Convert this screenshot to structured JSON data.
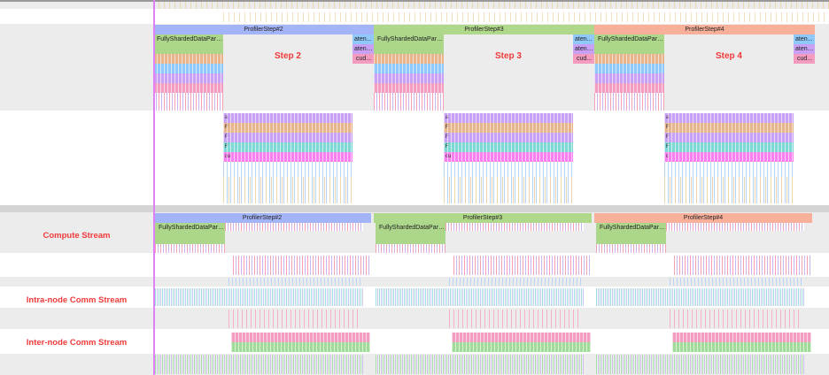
{
  "colors": {
    "step2": "#a4b4f8",
    "step3": "#b0d88a",
    "step4": "#f8b09a",
    "fsdp": "#acd68a",
    "orange": "#e8b48c",
    "blue": "#90c8fa",
    "purple": "#c8a0f4",
    "pink": "#f49cc0",
    "teal": "#80d8d4",
    "magenta": "#f880f0",
    "stream_label": "#f03a3a",
    "cursor": "#e080f8"
  },
  "steps": [
    {
      "profiler_label": "ProfilerStep#2",
      "annotation": "Step 2",
      "fsdp_label": "FullyShardedDataParal...",
      "aten1": "aten...",
      "aten2": "aten::...",
      "cud": "cud...",
      "mid_labels": [
        "a",
        "F",
        "F",
        "F",
        "cu"
      ],
      "bottom_label": "ProfilerStep#2",
      "bottom_fsdp": "FullyShardedDataParal..."
    },
    {
      "profiler_label": "ProfilerStep#3",
      "annotation": "Step 3",
      "fsdp_label": "FullyShardedDataParal...",
      "aten1": "aten...",
      "aten2": "aten::...",
      "cud": "cud...",
      "mid_labels": [
        "a",
        "F",
        "F",
        "F",
        "cu"
      ],
      "bottom_label": "ProfilerStep#3",
      "bottom_fsdp": "FullyShardedDataParal..."
    },
    {
      "profiler_label": "ProfilerStep#4",
      "annotation": "Step 4",
      "fsdp_label": "FullyShardedDataParal...",
      "aten1": "aten...",
      "aten2": "aten::...",
      "cud": "cud...",
      "mid_labels": [
        "a",
        "F",
        "F",
        "F",
        "c"
      ],
      "bottom_label": "ProfilerStep#4",
      "bottom_fsdp": "FullyShardedDataParal..."
    }
  ],
  "streams": {
    "compute": "Compute Stream",
    "intra": "Intra-node Comm Stream",
    "inter": "Inter-node  Comm Stream"
  }
}
